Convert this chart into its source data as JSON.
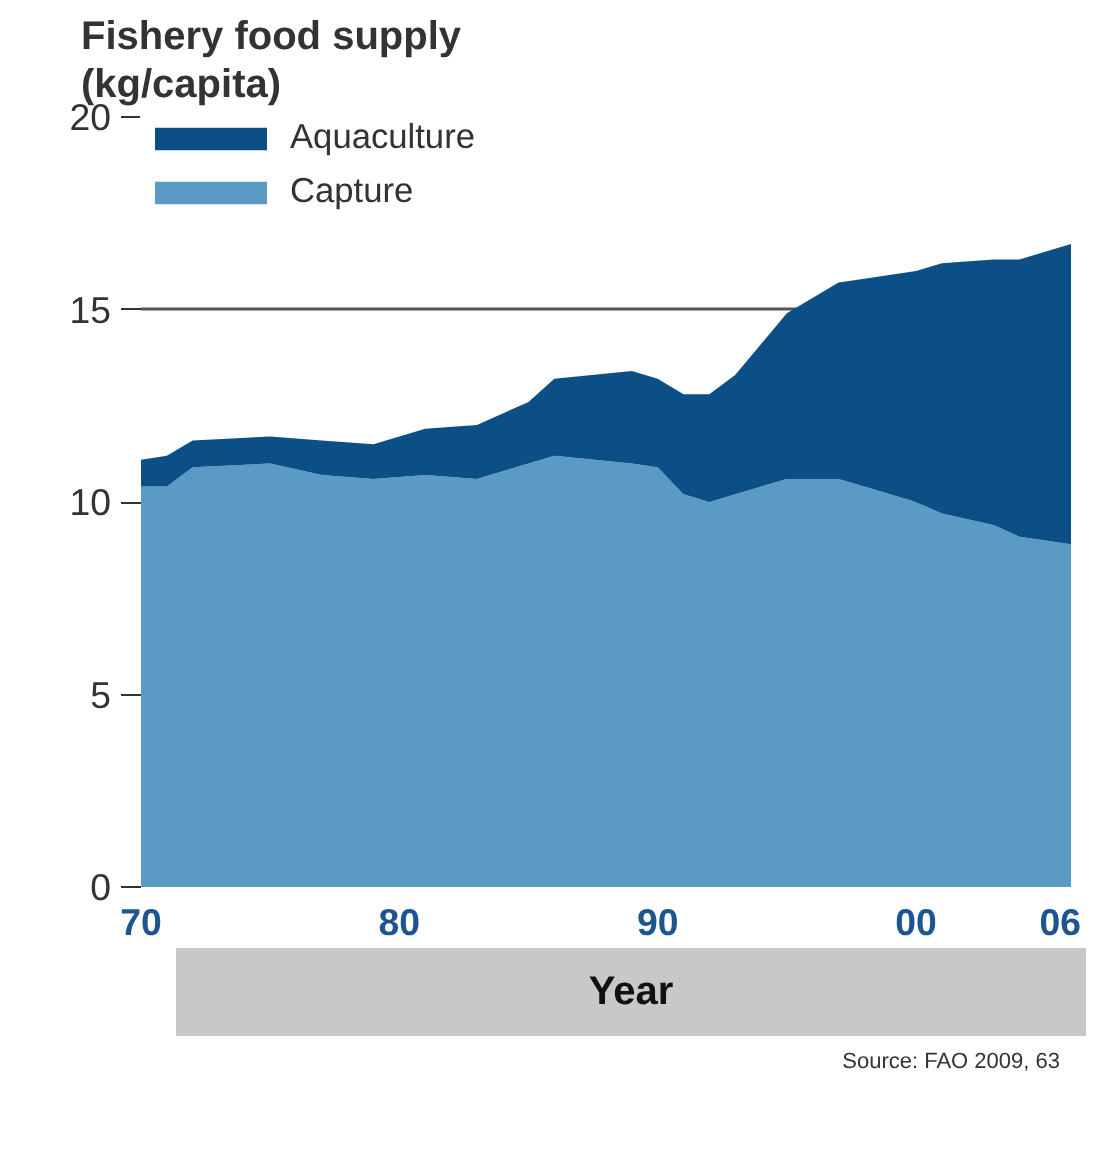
{
  "chart_data": {
    "type": "area",
    "stacked": true,
    "title": "Fishery food supply\n(kg/capita)",
    "xlabel": "Year",
    "annotations": [
      "Source:  FAO 2009, 63"
    ],
    "x": [
      1970,
      1971,
      1972,
      1975,
      1977,
      1979,
      1981,
      1983,
      1985,
      1986,
      1989,
      1990,
      1991,
      1992,
      1993,
      1995,
      1997,
      1998,
      2000,
      2001,
      2003,
      2004,
      2006
    ],
    "series": [
      {
        "name": "Capture",
        "color": "#5b9ac4",
        "values": [
          10.4,
          10.4,
          10.9,
          11.0,
          10.7,
          10.6,
          10.7,
          10.6,
          11.0,
          11.2,
          11.0,
          10.9,
          10.2,
          10.0,
          10.2,
          10.6,
          10.6,
          10.4,
          10.0,
          9.7,
          9.4,
          9.1,
          8.9
        ]
      },
      {
        "name": "Aquaculture",
        "color": "#0b4f86",
        "values": [
          0.7,
          0.8,
          0.7,
          0.7,
          0.9,
          0.9,
          1.2,
          1.4,
          1.6,
          2.0,
          2.4,
          2.3,
          2.6,
          2.8,
          3.1,
          4.3,
          5.1,
          5.4,
          6.0,
          6.5,
          6.9,
          7.2,
          7.8
        ]
      }
    ],
    "xlim": [
      1970,
      2006
    ],
    "ylim": [
      0,
      20
    ],
    "xticks": [
      {
        "value": 1970,
        "label": "70"
      },
      {
        "value": 1980,
        "label": "80"
      },
      {
        "value": 1990,
        "label": "90"
      },
      {
        "value": 2000,
        "label": "00"
      },
      {
        "value": 2006,
        "label": "06"
      }
    ],
    "yticks": [
      0,
      5,
      10,
      15,
      20
    ],
    "grid": "y",
    "legend": "top left"
  }
}
